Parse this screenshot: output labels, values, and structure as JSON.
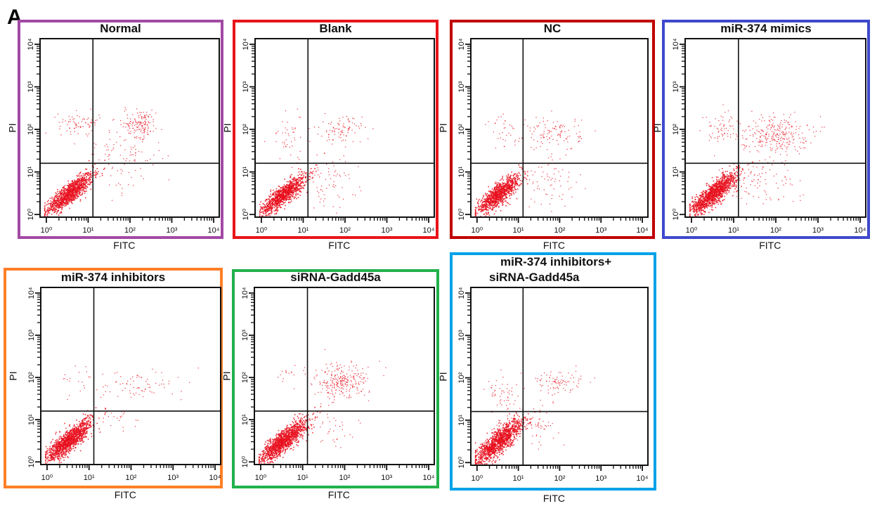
{
  "figure_label": "A",
  "chart_data": [
    {
      "type": "scatter",
      "id": "normal",
      "title": "Normal",
      "border_color": "#a349a4",
      "xlabel": "FITC",
      "ylabel": "PI",
      "xscale": "log",
      "yscale": "log",
      "xlim": [
        1,
        10000
      ],
      "ylim": [
        1,
        10000
      ],
      "x_tick_labels": [
        "10⁰",
        "10¹",
        "10²",
        "10³",
        "10⁴"
      ],
      "y_tick_labels": [
        "10⁰",
        "10¹",
        "10²",
        "10³",
        "10⁴"
      ],
      "gate": {
        "x": 13,
        "y": 16
      },
      "clusters": [
        {
          "quadrant": "lower-left",
          "center": [
            3.5,
            3.2
          ],
          "spread": [
            0.28,
            0.24
          ],
          "n": 1100,
          "correlation": 0.85
        },
        {
          "quadrant": "upper-right",
          "center": [
            180,
            140
          ],
          "spread": [
            0.18,
            0.16
          ],
          "n": 140,
          "correlation": 0
        },
        {
          "quadrant": "upper-left",
          "center": [
            6,
            150
          ],
          "spread": [
            0.25,
            0.12
          ],
          "n": 70,
          "correlation": 0
        },
        {
          "quadrant": "scattered",
          "center": [
            60,
            25
          ],
          "spread": [
            0.5,
            0.45
          ],
          "n": 110,
          "correlation": 0
        }
      ]
    },
    {
      "type": "scatter",
      "id": "blank",
      "title": "Blank",
      "border_color": "#e8131a",
      "xlabel": "FITC",
      "ylabel": "PI",
      "xscale": "log",
      "yscale": "log",
      "xlim": [
        1,
        10000
      ],
      "ylim": [
        1,
        10000
      ],
      "x_tick_labels": [
        "10⁰",
        "10¹",
        "10²",
        "10³",
        "10⁴"
      ],
      "y_tick_labels": [
        "10⁰",
        "10¹",
        "10²",
        "10³",
        "10⁴"
      ],
      "gate": {
        "x": 13,
        "y": 16
      },
      "clusters": [
        {
          "quadrant": "lower-left",
          "center": [
            3.3,
            3.0
          ],
          "spread": [
            0.27,
            0.23
          ],
          "n": 1000,
          "correlation": 0.85
        },
        {
          "quadrant": "upper-right",
          "center": [
            80,
            100
          ],
          "spread": [
            0.25,
            0.16
          ],
          "n": 90,
          "correlation": 0
        },
        {
          "quadrant": "upper-left",
          "center": [
            5,
            70
          ],
          "spread": [
            0.25,
            0.3
          ],
          "n": 45,
          "correlation": 0
        },
        {
          "quadrant": "lower-right",
          "center": [
            40,
            6
          ],
          "spread": [
            0.35,
            0.3
          ],
          "n": 70,
          "correlation": 0
        }
      ]
    },
    {
      "type": "scatter",
      "id": "nc",
      "title": "NC",
      "border_color": "#c00000",
      "xlabel": "FITC",
      "ylabel": "PI",
      "xscale": "log",
      "yscale": "log",
      "xlim": [
        1,
        10000
      ],
      "ylim": [
        1,
        10000
      ],
      "x_tick_labels": [
        "10⁰",
        "10¹",
        "10²",
        "10³",
        "10⁴"
      ],
      "y_tick_labels": [
        "10⁰",
        "10¹",
        "10²",
        "10³",
        "10⁴"
      ],
      "gate": {
        "x": 13,
        "y": 16
      },
      "clusters": [
        {
          "quadrant": "lower-left",
          "center": [
            3.2,
            3.0
          ],
          "spread": [
            0.27,
            0.23
          ],
          "n": 1000,
          "correlation": 0.85
        },
        {
          "quadrant": "upper-right",
          "center": [
            70,
            80
          ],
          "spread": [
            0.33,
            0.2
          ],
          "n": 110,
          "correlation": 0
        },
        {
          "quadrant": "upper-left",
          "center": [
            5,
            90
          ],
          "spread": [
            0.25,
            0.2
          ],
          "n": 35,
          "correlation": 0
        },
        {
          "quadrant": "lower-right",
          "center": [
            60,
            6
          ],
          "spread": [
            0.4,
            0.3
          ],
          "n": 70,
          "correlation": 0
        }
      ]
    },
    {
      "type": "scatter",
      "id": "mir374-mimics",
      "title": "miR-374 mimics",
      "border_color": "#3f48cc",
      "xlabel": "FITC",
      "ylabel": "PI",
      "xscale": "log",
      "yscale": "log",
      "xlim": [
        1,
        10000
      ],
      "ylim": [
        1,
        10000
      ],
      "x_tick_labels": [
        "10⁰",
        "10¹",
        "10²",
        "10³",
        "10⁴"
      ],
      "y_tick_labels": [
        "10⁰",
        "10¹",
        "10²",
        "10³",
        "10⁴"
      ],
      "gate": {
        "x": 13,
        "y": 16
      },
      "clusters": [
        {
          "quadrant": "lower-left",
          "center": [
            3.3,
            3.2
          ],
          "spread": [
            0.28,
            0.25
          ],
          "n": 1200,
          "correlation": 0.85
        },
        {
          "quadrant": "upper-right",
          "center": [
            90,
            80
          ],
          "spread": [
            0.4,
            0.22
          ],
          "n": 280,
          "correlation": 0
        },
        {
          "quadrant": "upper-left",
          "center": [
            5,
            100
          ],
          "spread": [
            0.22,
            0.2
          ],
          "n": 60,
          "correlation": 0
        },
        {
          "quadrant": "lower-right",
          "center": [
            40,
            7
          ],
          "spread": [
            0.45,
            0.3
          ],
          "n": 90,
          "correlation": 0
        }
      ]
    },
    {
      "type": "scatter",
      "id": "mir374-inhibitors",
      "title": "miR-374 inhibitors",
      "border_color": "#ff7f27",
      "xlabel": "FITC",
      "ylabel": "PI",
      "xscale": "log",
      "yscale": "log",
      "xlim": [
        1,
        10000
      ],
      "ylim": [
        1,
        10000
      ],
      "x_tick_labels": [
        "10⁰",
        "10¹",
        "10²",
        "10³",
        "10⁴"
      ],
      "y_tick_labels": [
        "10⁰",
        "10¹",
        "10²",
        "10³",
        "10⁴"
      ],
      "gate": {
        "x": 13,
        "y": 16
      },
      "clusters": [
        {
          "quadrant": "lower-left",
          "center": [
            3.3,
            3.3
          ],
          "spread": [
            0.27,
            0.25
          ],
          "n": 1200,
          "correlation": 0.85
        },
        {
          "quadrant": "upper-right",
          "center": [
            150,
            70
          ],
          "spread": [
            0.5,
            0.2
          ],
          "n": 75,
          "correlation": 0
        },
        {
          "quadrant": "upper-left",
          "center": [
            5,
            90
          ],
          "spread": [
            0.25,
            0.15
          ],
          "n": 20,
          "correlation": 0
        },
        {
          "quadrant": "lower-right",
          "center": [
            35,
            10
          ],
          "spread": [
            0.3,
            0.15
          ],
          "n": 20,
          "correlation": 0
        }
      ]
    },
    {
      "type": "scatter",
      "id": "sirna-gadd45a",
      "title": "siRNA-Gadd45a",
      "border_color": "#22b14c",
      "xlabel": "FITC",
      "ylabel": "PI",
      "xscale": "log",
      "yscale": "log",
      "xlim": [
        1,
        10000
      ],
      "ylim": [
        1,
        10000
      ],
      "x_tick_labels": [
        "10⁰",
        "10¹",
        "10²",
        "10³",
        "10⁴"
      ],
      "y_tick_labels": [
        "10⁰",
        "10¹",
        "10²",
        "10³",
        "10⁴"
      ],
      "gate": {
        "x": 13,
        "y": 16
      },
      "clusters": [
        {
          "quadrant": "lower-left",
          "center": [
            3.5,
            3.3
          ],
          "spread": [
            0.28,
            0.25
          ],
          "n": 1200,
          "correlation": 0.85
        },
        {
          "quadrant": "upper-right",
          "center": [
            80,
            80
          ],
          "spread": [
            0.33,
            0.2
          ],
          "n": 260,
          "correlation": 0
        },
        {
          "quadrant": "upper-left",
          "center": [
            5,
            110
          ],
          "spread": [
            0.25,
            0.12
          ],
          "n": 15,
          "correlation": 0
        },
        {
          "quadrant": "lower-right",
          "center": [
            40,
            6
          ],
          "spread": [
            0.35,
            0.3
          ],
          "n": 40,
          "correlation": 0
        }
      ]
    },
    {
      "type": "scatter",
      "id": "mir374-inhibitors-sirna-gadd45a",
      "title": "miR-374 inhibitors+\nsiRNA-Gadd45a",
      "title_lines": [
        "miR-374 inhibitors+",
        "siRNA-Gadd45a"
      ],
      "border_color": "#00a2e8",
      "xlabel": "FITC",
      "ylabel": "PI",
      "xscale": "log",
      "yscale": "log",
      "xlim": [
        1,
        10000
      ],
      "ylim": [
        1,
        10000
      ],
      "x_tick_labels": [
        "10⁰",
        "10¹",
        "10²",
        "10³",
        "10⁴"
      ],
      "y_tick_labels": [
        "10⁰",
        "10¹",
        "10²",
        "10³",
        "10⁴"
      ],
      "gate": {
        "x": 13,
        "y": 16
      },
      "clusters": [
        {
          "quadrant": "lower-left",
          "center": [
            3.4,
            3.3
          ],
          "spread": [
            0.3,
            0.27
          ],
          "n": 1200,
          "correlation": 0.85
        },
        {
          "quadrant": "upper-right",
          "center": [
            90,
            80
          ],
          "spread": [
            0.3,
            0.15
          ],
          "n": 90,
          "correlation": 0
        },
        {
          "quadrant": "upper-left",
          "center": [
            5,
            30
          ],
          "spread": [
            0.22,
            0.3
          ],
          "n": 70,
          "correlation": 0
        },
        {
          "quadrant": "lower-right",
          "center": [
            30,
            8
          ],
          "spread": [
            0.25,
            0.25
          ],
          "n": 50,
          "correlation": 0
        }
      ]
    }
  ],
  "point_color": "#e8101e"
}
